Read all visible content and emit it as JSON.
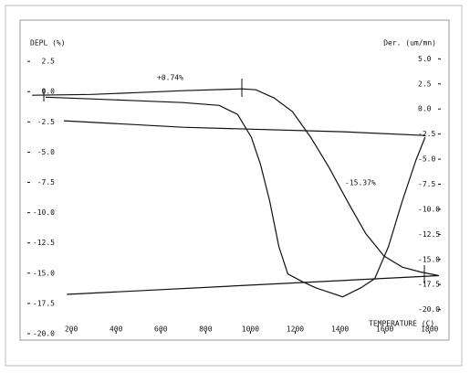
{
  "chart_data": {
    "type": "line",
    "x_label": "TEMPERATURE (C)",
    "y_label": "DEPL (%)",
    "y2_label": "Der. (um/mn)",
    "annotations": [
      "+0.74%",
      "-15.37%"
    ],
    "xlim": [
      4,
      1850
    ],
    "xticks": [
      200,
      400,
      600,
      800,
      1000,
      1200,
      1400,
      1600,
      1800
    ],
    "ylim": [
      -20,
      4.7
    ],
    "yticks": [
      2.5,
      {
        "value": 0,
        "label": "0.0"
      },
      -2.5,
      {
        "value": -5,
        "label": "-5.0"
      },
      -7.5,
      {
        "value": -10,
        "label": "-10.0"
      },
      -12.5,
      {
        "value": -15,
        "label": "-15.0"
      },
      -17.5,
      {
        "value": -20,
        "label": "-20.0"
      }
    ],
    "y2lim": [
      -22.4,
      7.4
    ],
    "y2ticks": [
      {
        "value": 5,
        "label": "5.0"
      },
      2.5,
      {
        "value": 0,
        "label": "0.0"
      },
      -2.5,
      {
        "value": -5,
        "label": "-5.0"
      },
      -7.5,
      {
        "value": -10,
        "label": "-10.0"
      },
      -12.5,
      {
        "value": -15,
        "label": "-15.0"
      },
      -17.5,
      {
        "value": -20,
        "label": "-20.0"
      }
    ],
    "series": [
      {
        "color": "#111111",
        "x": [
          25,
          290,
          494,
          698,
          963,
          1024,
          1106,
          1188,
          1269,
          1351,
          1433,
          1514,
          1596,
          1678,
          1759,
          1841
        ],
        "values": [
          -0.3,
          -0.23,
          -0.08,
          0.08,
          0.23,
          0.15,
          -0.53,
          -1.66,
          -3.77,
          -6.26,
          -9.06,
          -11.7,
          -13.58,
          -14.5,
          -14.9,
          -15.2
        ]
      },
      {
        "color": "#111111",
        "x": [
          1841,
          180
        ],
        "values": [
          -15.2,
          -16.75
        ]
      },
      {
        "color": "#111111",
        "axis": "y2",
        "x": [
          86,
          290,
          494,
          698,
          861,
          943,
          1004,
          1045,
          1086,
          1127,
          1167,
          1229,
          1290,
          1351,
          1412,
          1494,
          1555,
          1616,
          1678,
          1739,
          1780
        ],
        "values": [
          1.18,
          1.0,
          0.82,
          0.64,
          0.36,
          -0.55,
          -2.82,
          -5.55,
          -9.18,
          -13.73,
          -16.45,
          -17.18,
          -17.82,
          -18.27,
          -18.73,
          -17.82,
          -16.91,
          -13.73,
          -9.18,
          -5.09,
          -2.82
        ]
      },
      {
        "color": "#111111",
        "axis": "y2",
        "x": [
          1780,
          1412,
          698,
          167
        ],
        "values": [
          -2.64,
          -2.27,
          -1.82,
          -1.18
        ]
      }
    ]
  }
}
